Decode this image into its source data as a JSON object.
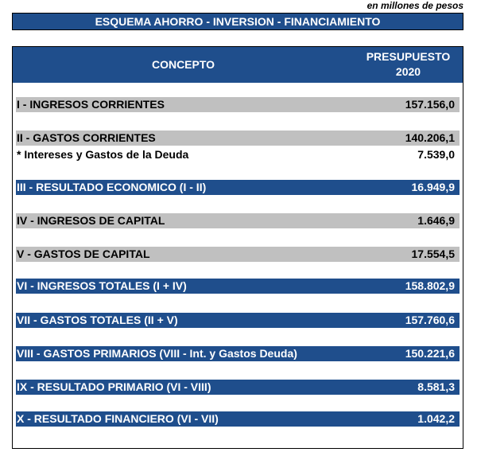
{
  "units_note": "en millones de pesos",
  "title": "ESQUEMA AHORRO - INVERSION - FINANCIAMIENTO",
  "header": {
    "concepto": "CONCEPTO",
    "presupuesto_line1": "PRESUPUESTO",
    "presupuesto_line2": "2020"
  },
  "rows": [
    {
      "label": "I - INGRESOS CORRIENTES",
      "value": "157.156,0",
      "style": "gray"
    },
    {
      "label": "II - GASTOS CORRIENTES",
      "value": "140.206,1",
      "style": "gray"
    },
    {
      "label": "* Intereses y Gastos de la Deuda",
      "value": "7.539,0",
      "style": "plain"
    },
    {
      "label": "III - RESULTADO ECONOMICO (I - II)",
      "value": "16.949,9",
      "style": "blue"
    },
    {
      "label": "IV - INGRESOS DE CAPITAL",
      "value": "1.646,9",
      "style": "gray"
    },
    {
      "label": "V - GASTOS DE CAPITAL",
      "value": "17.554,5",
      "style": "gray"
    },
    {
      "label": "VI - INGRESOS TOTALES (I + IV)",
      "value": "158.802,9",
      "style": "blue"
    },
    {
      "label": "VII - GASTOS TOTALES (II + V)",
      "value": "157.760,6",
      "style": "blue"
    },
    {
      "label": "VIII - GASTOS PRIMARIOS (VIII - Int. y Gastos Deuda)",
      "value": "150.221,6",
      "style": "blue"
    },
    {
      "label": "IX - RESULTADO PRIMARIO (VI - VIII)",
      "value": "8.581,3",
      "style": "blue"
    },
    {
      "label": "X - RESULTADO FINANCIERO (VI - VII)",
      "value": "1.042,2",
      "style": "blue"
    }
  ]
}
